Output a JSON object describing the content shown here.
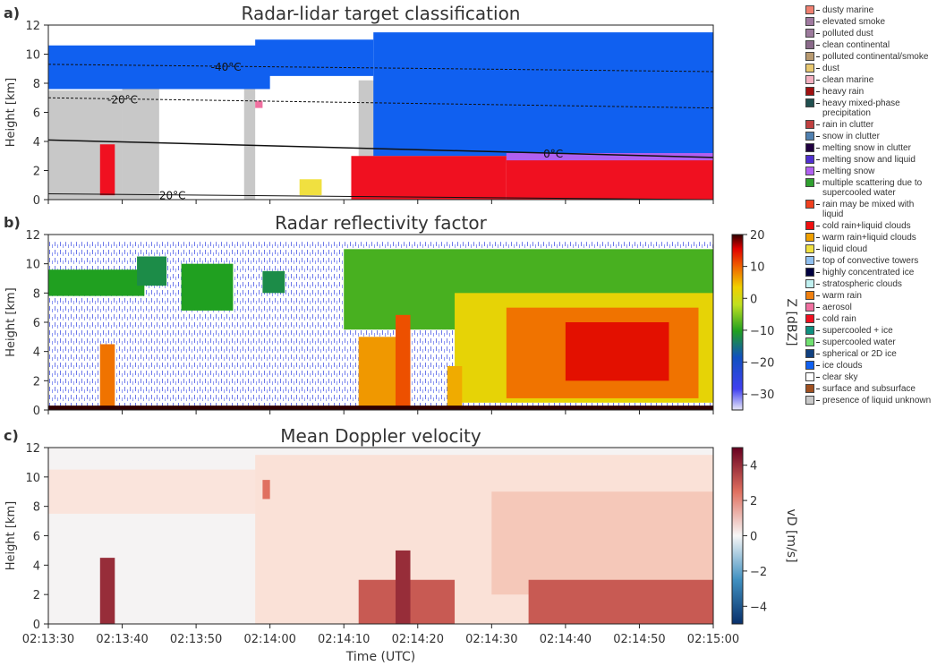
{
  "chart_data": {
    "type": "heatmap",
    "xlabel": "Time (UTC)",
    "xticks": [
      "02:13:30",
      "02:13:40",
      "02:13:50",
      "02:14:00",
      "02:14:10",
      "02:14:20",
      "02:14:30",
      "02:14:40",
      "02:14:50",
      "02:15:00"
    ],
    "xrange_seconds": [
      0,
      90
    ],
    "panels": [
      {
        "id": "a",
        "label": "a)",
        "title": "Radar-lidar target classification",
        "ylabel": "Height [km]",
        "yticks": [
          "0",
          "2",
          "4",
          "6",
          "8",
          "10",
          "12"
        ],
        "ylim": [
          0,
          12
        ],
        "legend_position": "right",
        "legend": [
          {
            "label": "dusty marine",
            "color": "#f08070"
          },
          {
            "label": "elevated smoke",
            "color": "#a07aa0"
          },
          {
            "label": "polluted dust",
            "color": "#9c7a9c"
          },
          {
            "label": "clean continental",
            "color": "#8a6a8a"
          },
          {
            "label": "polluted continental/smoke",
            "color": "#b89a70"
          },
          {
            "label": "dust",
            "color": "#e8c870"
          },
          {
            "label": "clean marine",
            "color": "#f4b0c0"
          },
          {
            "label": "heavy rain",
            "color": "#a01010"
          },
          {
            "label": "heavy mixed-phase precipitation",
            "color": "#205050"
          },
          {
            "label": "rain in clutter",
            "color": "#c04040"
          },
          {
            "label": "snow in clutter",
            "color": "#5080b0"
          },
          {
            "label": "melting snow in clutter",
            "color": "#200040"
          },
          {
            "label": "melting snow and liquid",
            "color": "#5030d0"
          },
          {
            "label": "melting snow",
            "color": "#b060f0"
          },
          {
            "label": "multiple scattering due to supercooled water",
            "color": "#30a030"
          },
          {
            "label": "rain may be mixed with liquid",
            "color": "#f04020"
          },
          {
            "label": "cold rain+liquid clouds",
            "color": "#f01010"
          },
          {
            "label": "warm rain+liquid clouds",
            "color": "#f0a000"
          },
          {
            "label": "liquid cloud",
            "color": "#f0e040"
          },
          {
            "label": "top of convective towers",
            "color": "#90c0f0"
          },
          {
            "label": "highly concentrated ice",
            "color": "#000040"
          },
          {
            "label": "stratospheric clouds",
            "color": "#c0f0f0"
          },
          {
            "label": "warm rain",
            "color": "#f08010"
          },
          {
            "label": "aerosol",
            "color": "#f070a0"
          },
          {
            "label": "cold rain",
            "color": "#f01020"
          },
          {
            "label": "supercooled + ice",
            "color": "#109080"
          },
          {
            "label": "supercooled water",
            "color": "#70e070"
          },
          {
            "label": "spherical or 2D ice",
            "color": "#104080"
          },
          {
            "label": "ice clouds",
            "color": "#1060f0"
          },
          {
            "label": "clear sky",
            "color": "#ffffff"
          },
          {
            "label": "surface and subsurface",
            "color": "#a05020"
          },
          {
            "label": "presence of liquid unknown",
            "color": "#c8c8c8"
          }
        ],
        "regions": [
          {
            "class": "presence of liquid unknown",
            "t": [
              0,
              10
            ],
            "h": [
              0,
              7.5
            ]
          },
          {
            "class": "presence of liquid unknown",
            "t": [
              10,
              15
            ],
            "h": [
              0,
              8.5
            ]
          },
          {
            "class": "presence of liquid unknown",
            "t": [
              26.5,
              28
            ],
            "h": [
              0,
              8
            ]
          },
          {
            "class": "presence of liquid unknown",
            "t": [
              42,
              47
            ],
            "h": [
              0,
              8.2
            ]
          },
          {
            "class": "presence of liquid unknown",
            "t": [
              46,
              62
            ],
            "h": [
              2.5,
              4
            ]
          },
          {
            "class": "ice clouds",
            "t": [
              0,
              30
            ],
            "h": [
              7.6,
              10.6
            ]
          },
          {
            "class": "ice clouds",
            "t": [
              28,
              44
            ],
            "h": [
              8.5,
              11
            ]
          },
          {
            "class": "ice clouds",
            "t": [
              44,
              90
            ],
            "h": [
              3,
              11.5
            ]
          },
          {
            "class": "melting snow",
            "t": [
              62,
              90
            ],
            "h": [
              2.6,
              3.2
            ]
          },
          {
            "class": "cold rain",
            "t": [
              7,
              9
            ],
            "h": [
              0.3,
              3.8
            ]
          },
          {
            "class": "cold rain",
            "t": [
              41,
              62
            ],
            "h": [
              0,
              3
            ]
          },
          {
            "class": "cold rain",
            "t": [
              62,
              90
            ],
            "h": [
              0,
              2.7
            ]
          },
          {
            "class": "liquid cloud",
            "t": [
              34,
              37
            ],
            "h": [
              0.3,
              1.4
            ]
          },
          {
            "class": "aerosol",
            "t": [
              28,
              29
            ],
            "h": [
              6.3,
              6.8
            ]
          }
        ],
        "isotherms": [
          {
            "label": "-40°C",
            "h": [
              9.3,
              8.8
            ],
            "label_t": 22
          },
          {
            "label": "-20°C",
            "h": [
              7.0,
              6.3
            ],
            "label_t": 8
          },
          {
            "label": "0°C",
            "h": [
              4.1,
              2.9
            ],
            "label_t": 67
          },
          {
            "label": "20°C",
            "h": [
              0.4,
              0.0
            ],
            "label_t": 15
          }
        ]
      },
      {
        "id": "b",
        "label": "b)",
        "title": "Radar reflectivity factor",
        "ylabel": "Height [km]",
        "yticks": [
          "0",
          "2",
          "4",
          "6",
          "8",
          "10",
          "12"
        ],
        "ylim": [
          0,
          12
        ],
        "colorbar": {
          "label": "Z [dBZ]",
          "ticks": [
            "20",
            "10",
            "0",
            "−10",
            "−20",
            "−30"
          ],
          "range": [
            -35,
            20
          ]
        },
        "regions": [
          {
            "t": [
              0,
              13
            ],
            "h": [
              7.8,
              9.6
            ],
            "z": -10
          },
          {
            "t": [
              12,
              16
            ],
            "h": [
              8.5,
              10.5
            ],
            "z": -12
          },
          {
            "t": [
              18,
              25
            ],
            "h": [
              6.8,
              10
            ],
            "z": -10
          },
          {
            "t": [
              29,
              32
            ],
            "h": [
              8,
              9.5
            ],
            "z": -12
          },
          {
            "t": [
              40,
              90
            ],
            "h": [
              5.5,
              11
            ],
            "z": -8
          },
          {
            "t": [
              55,
              90
            ],
            "h": [
              0.5,
              8
            ],
            "z": 2
          },
          {
            "t": [
              62,
              88
            ],
            "h": [
              0.8,
              7
            ],
            "z": 8
          },
          {
            "t": [
              70,
              84
            ],
            "h": [
              2,
              6
            ],
            "z": 14
          },
          {
            "t": [
              7,
              9
            ],
            "h": [
              0,
              4.5
            ],
            "z": 8
          },
          {
            "t": [
              42,
              48
            ],
            "h": [
              0,
              5
            ],
            "z": 6
          },
          {
            "t": [
              47,
              49
            ],
            "h": [
              0,
              6.5
            ],
            "z": 10
          },
          {
            "t": [
              54,
              56
            ],
            "h": [
              0,
              3
            ],
            "z": 5
          },
          {
            "t": [
              0,
              90
            ],
            "h": [
              0,
              0.3
            ],
            "z": 20
          }
        ]
      },
      {
        "id": "c",
        "label": "c)",
        "title": "Mean Doppler velocity",
        "ylabel": "Height [km]",
        "yticks": [
          "0",
          "2",
          "4",
          "6",
          "8",
          "10",
          "12"
        ],
        "ylim": [
          0,
          12
        ],
        "colorbar": {
          "label": "vD [m/s]",
          "ticks": [
            "4",
            "2",
            "0",
            "−2",
            "−4"
          ],
          "range": [
            -5,
            5
          ]
        },
        "regions": [
          {
            "t": [
              0,
              30
            ],
            "h": [
              7.5,
              10.5
            ],
            "v": 0.5
          },
          {
            "t": [
              28,
              90
            ],
            "h": [
              0,
              11.5
            ],
            "v": 0.6
          },
          {
            "t": [
              60,
              90
            ],
            "h": [
              2,
              9
            ],
            "v": 1.2
          },
          {
            "t": [
              7,
              9
            ],
            "h": [
              0,
              4.5
            ],
            "v": 4
          },
          {
            "t": [
              42,
              55
            ],
            "h": [
              0,
              3
            ],
            "v": 3
          },
          {
            "t": [
              47,
              49
            ],
            "h": [
              0,
              5
            ],
            "v": 4
          },
          {
            "t": [
              65,
              90
            ],
            "h": [
              0,
              3
            ],
            "v": 3
          },
          {
            "t": [
              29,
              30
            ],
            "h": [
              8.5,
              9.8
            ],
            "v": 2.5
          }
        ]
      }
    ]
  }
}
